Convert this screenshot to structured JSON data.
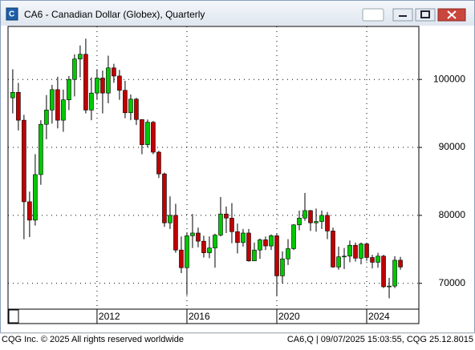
{
  "chart_data": {
    "type": "candlestick",
    "title": "CA6 - Canadian Dollar (Globex), Quarterly",
    "x": [
      2008.25,
      2008.5,
      2008.75,
      2009,
      2009.25,
      2009.5,
      2009.75,
      2010,
      2010.25,
      2010.5,
      2010.75,
      2011,
      2011.25,
      2011.5,
      2011.75,
      2012,
      2012.25,
      2012.5,
      2012.75,
      2013,
      2013.25,
      2013.5,
      2013.75,
      2014,
      2014.25,
      2014.5,
      2014.75,
      2015,
      2015.25,
      2015.5,
      2015.75,
      2016,
      2016.25,
      2016.5,
      2016.75,
      2017,
      2017.25,
      2017.5,
      2017.75,
      2018,
      2018.25,
      2018.5,
      2018.75,
      2019,
      2019.25,
      2019.5,
      2019.75,
      2020,
      2020.25,
      2020.5,
      2020.75,
      2021,
      2021.25,
      2021.5,
      2021.75,
      2022,
      2022.25,
      2022.5,
      2022.75,
      2023,
      2023.25,
      2023.5,
      2023.75,
      2024,
      2024.25,
      2024.5,
      2024.75,
      2025,
      2025.25,
      2025.5
    ],
    "open": [
      97300,
      98100,
      94000,
      82000,
      79300,
      86000,
      93400,
      95500,
      98500,
      94000,
      97000,
      100000,
      103000,
      103700,
      95500,
      98000,
      100200,
      98000,
      101700,
      100500,
      98400,
      95100,
      97100,
      94100,
      90400,
      93700,
      89300,
      86100,
      78900,
      80000,
      74900,
      72300,
      77000,
      77400,
      76200,
      74500,
      75200,
      77100,
      80200,
      79600,
      77600,
      76000,
      77400,
      73300,
      74900,
      76400,
      75500,
      77000,
      71100,
      73600,
      75100,
      78600,
      79600,
      80700,
      78900,
      79100,
      80000,
      77700,
      72400,
      73900,
      74000,
      75600,
      73700,
      75800,
      73800,
      73100,
      74000,
      69500,
      69600,
      73400
    ],
    "high": [
      101500,
      99500,
      94800,
      83500,
      89000,
      94000,
      97700,
      99200,
      100400,
      98500,
      100500,
      103700,
      105000,
      106000,
      100300,
      101500,
      101300,
      103500,
      102300,
      101400,
      99800,
      97800,
      97300,
      94100,
      94100,
      93900,
      89500,
      86300,
      82800,
      81700,
      76900,
      77500,
      80200,
      78200,
      77000,
      76900,
      77300,
      82700,
      81300,
      81800,
      78800,
      78000,
      78000,
      76000,
      76600,
      76900,
      77200,
      77300,
      74700,
      76500,
      78700,
      80700,
      83300,
      80800,
      81000,
      80700,
      80500,
      78200,
      75400,
      75200,
      76300,
      76000,
      76000,
      76000,
      74200,
      74500,
      74200,
      70800,
      74000,
      73900
    ],
    "low": [
      95000,
      92500,
      76500,
      76800,
      78500,
      84500,
      91200,
      93500,
      92800,
      92300,
      95500,
      97500,
      100300,
      95000,
      94000,
      97000,
      95000,
      96500,
      99500,
      97000,
      94300,
      94000,
      93300,
      89000,
      90000,
      89000,
      85500,
      78300,
      78000,
      74500,
      71500,
      68300,
      75200,
      75300,
      73800,
      73700,
      72300,
      76900,
      77400,
      75900,
      74400,
      75400,
      73200,
      73400,
      73600,
      74900,
      74900,
      68100,
      70000,
      72700,
      74900,
      77800,
      79200,
      77700,
      77600,
      78000,
      76500,
      72300,
      72000,
      72100,
      73100,
      73200,
      72800,
      73300,
      72200,
      72300,
      69300,
      67800,
      69300,
      72000
    ],
    "close": [
      98100,
      94000,
      82000,
      79300,
      86000,
      93400,
      95500,
      98500,
      94000,
      97000,
      100000,
      103000,
      103700,
      95500,
      98000,
      100200,
      98000,
      101700,
      100500,
      98400,
      95100,
      97100,
      94100,
      90400,
      93700,
      89300,
      86100,
      78900,
      80000,
      74900,
      72300,
      77000,
      77400,
      76200,
      74500,
      75200,
      77100,
      80200,
      79600,
      77600,
      76000,
      77400,
      73300,
      74900,
      76400,
      75500,
      77000,
      71100,
      73600,
      75100,
      78600,
      79600,
      80700,
      78900,
      79100,
      80000,
      77700,
      72400,
      73900,
      74000,
      75600,
      73700,
      75800,
      73800,
      73100,
      74000,
      69500,
      69600,
      73400,
      72400
    ],
    "xlim": [
      2008.04,
      2026.32
    ],
    "xticks": [
      2012,
      2016,
      2020,
      2024
    ],
    "ylim": [
      66200,
      107800
    ],
    "yticks": [
      70000,
      80000,
      90000,
      100000
    ],
    "grid": true,
    "up_color": "#00c800",
    "down_color": "#c00000"
  },
  "status_bar": {
    "left": "CQG Inc. © 2025 All rights reserved worldwide",
    "right": "CA6,Q | 09/07/2025 15:03:55, CQG 25.12.8015"
  }
}
